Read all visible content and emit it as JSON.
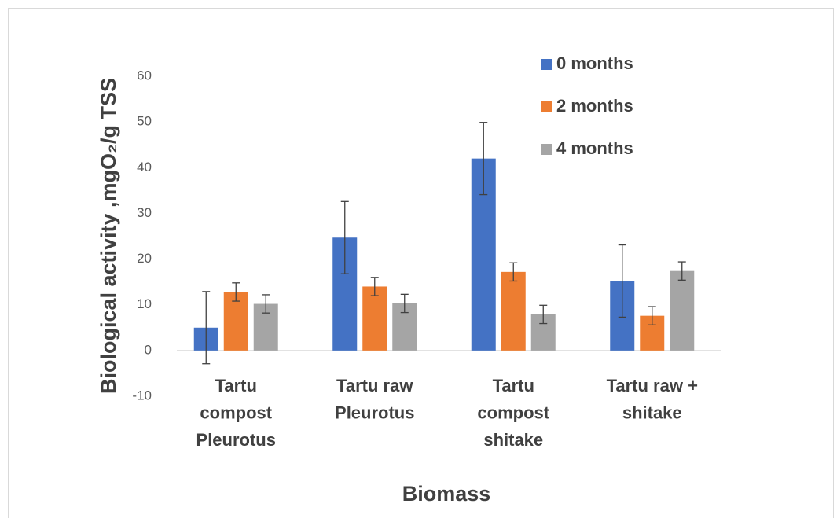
{
  "chart_data": {
    "type": "bar",
    "xlabel": "Biomass",
    "ylabel": "Biological activity ,mgO₂/g TSS",
    "categories": [
      [
        "Tartu",
        "compost",
        "Pleurotus"
      ],
      [
        "Tartu  raw",
        "Pleurotus"
      ],
      [
        "Tartu",
        "compost",
        "shitake"
      ],
      [
        "Tartu raw +",
        "shitake"
      ]
    ],
    "series": [
      {
        "name": "0 months",
        "color": "#4472c4",
        "values": [
          5.0,
          24.7,
          42.0,
          15.2
        ],
        "errors": [
          7.9,
          7.9,
          7.9,
          7.9
        ]
      },
      {
        "name": "2 months",
        "color": "#ed7d31",
        "values": [
          12.8,
          14.0,
          17.2,
          7.6
        ],
        "errors": [
          2.0,
          2.0,
          2.0,
          2.0
        ]
      },
      {
        "name": "4 months",
        "color": "#a5a5a5",
        "values": [
          10.2,
          10.3,
          7.9,
          17.4
        ],
        "errors": [
          2.0,
          2.0,
          2.0,
          2.0
        ]
      }
    ],
    "ylim": [
      -10,
      60
    ],
    "yticks": [
      -10,
      0,
      10,
      20,
      30,
      40,
      50,
      60
    ],
    "grid": false,
    "legend": "upper right"
  }
}
